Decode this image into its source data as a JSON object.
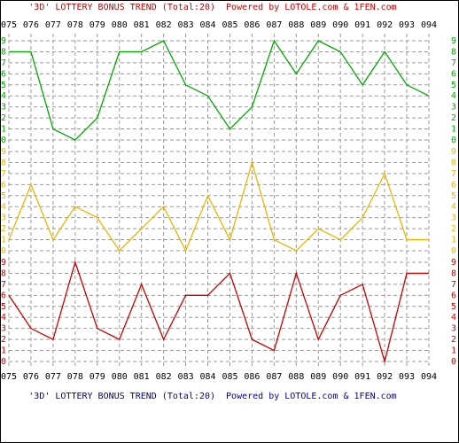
{
  "chart_data": {
    "type": "line",
    "title": "'3D' LOTTERY BONUS TREND (Total:20)  Powered by LOTOLE.com & 1FEN.com",
    "categories": [
      "075",
      "076",
      "077",
      "078",
      "079",
      "080",
      "081",
      "082",
      "083",
      "084",
      "085",
      "086",
      "087",
      "088",
      "089",
      "090",
      "091",
      "092",
      "093",
      "094"
    ],
    "ylim": [
      0,
      9
    ],
    "yticks": [
      0,
      1,
      2,
      3,
      4,
      5,
      6,
      7,
      8,
      9
    ],
    "grid": true,
    "series": [
      {
        "color": "#00aa00",
        "values": [
          8,
          8,
          1,
          0,
          2,
          8,
          8,
          9,
          5,
          4,
          1,
          3,
          9,
          6,
          9,
          8,
          5,
          8,
          5,
          4
        ]
      },
      {
        "color": "#f0b400",
        "values": [
          1,
          6,
          1,
          4,
          3,
          0,
          2,
          4,
          0,
          5,
          1,
          8,
          1,
          0,
          2,
          1,
          3,
          7,
          1,
          1
        ]
      },
      {
        "color": "#cc0000",
        "values": [
          6,
          3,
          2,
          9,
          3,
          2,
          7,
          2,
          6,
          6,
          8,
          2,
          1,
          8,
          2,
          6,
          7,
          0,
          8,
          8
        ]
      }
    ]
  }
}
